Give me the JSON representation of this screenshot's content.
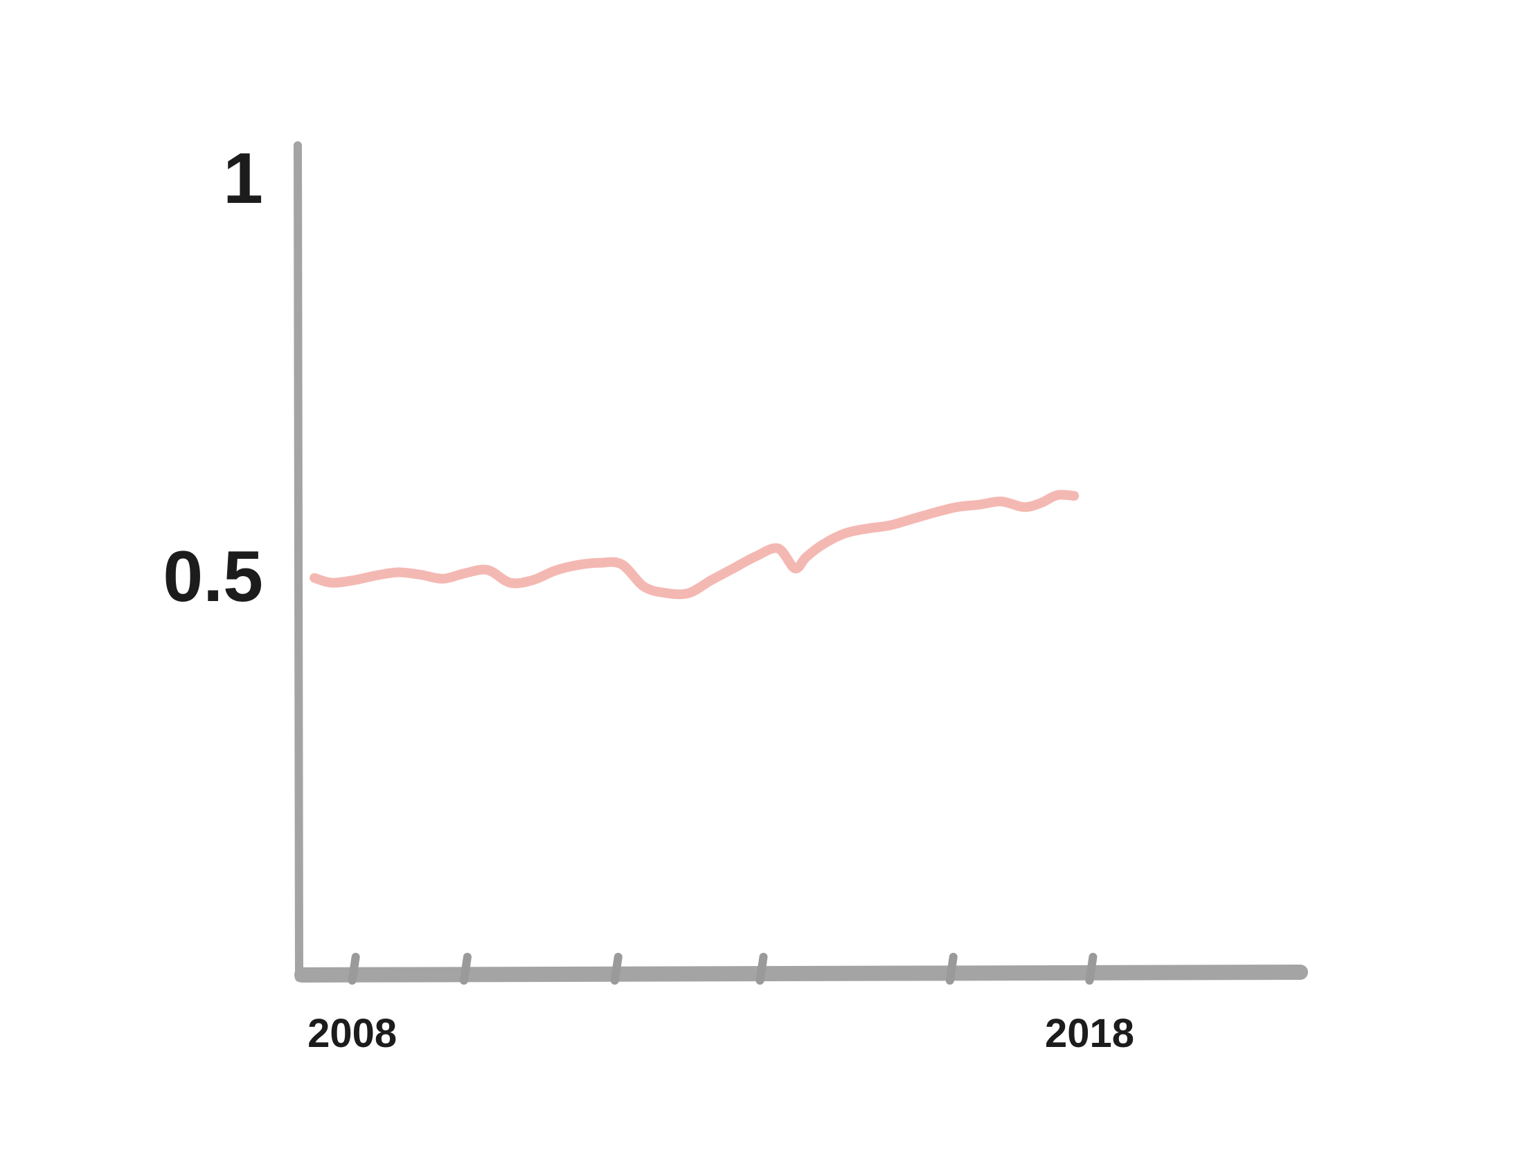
{
  "chart_data": {
    "type": "line",
    "title": "",
    "xlabel": "",
    "ylabel": "",
    "xlim": [
      2007,
      2025
    ],
    "ylim": [
      0,
      1
    ],
    "grid": false,
    "y_ticks": [
      {
        "value": 1,
        "label": "1"
      },
      {
        "value": 0.5,
        "label": "0.5"
      }
    ],
    "x_ticks": [
      {
        "value": 2008,
        "label": "2008"
      },
      {
        "value": 2010,
        "label": ""
      },
      {
        "value": 2012.7,
        "label": ""
      },
      {
        "value": 2015.3,
        "label": ""
      },
      {
        "value": 2018.7,
        "label": ""
      },
      {
        "value": 2021.2,
        "label": "2018"
      }
    ],
    "series": [
      {
        "color": "#f4b8b2",
        "x": [
          2007.3,
          2007.6,
          2008.0,
          2008.4,
          2008.8,
          2009.2,
          2009.6,
          2010.0,
          2010.4,
          2010.8,
          2011.2,
          2011.6,
          2012.0,
          2012.4,
          2012.8,
          2013.2,
          2013.6,
          2014.0,
          2014.4,
          2014.8,
          2015.2,
          2015.6,
          2015.9,
          2016.1,
          2016.4,
          2016.8,
          2017.2,
          2017.6,
          2018.0,
          2018.4,
          2018.8,
          2019.2,
          2019.6,
          2020.0,
          2020.3,
          2020.6,
          2020.9
        ],
        "y": [
          0.496,
          0.49,
          0.493,
          0.499,
          0.503,
          0.5,
          0.495,
          0.502,
          0.506,
          0.49,
          0.493,
          0.505,
          0.512,
          0.515,
          0.513,
          0.485,
          0.477,
          0.477,
          0.493,
          0.508,
          0.523,
          0.533,
          0.508,
          0.522,
          0.538,
          0.552,
          0.558,
          0.562,
          0.57,
          0.578,
          0.585,
          0.588,
          0.592,
          0.585,
          0.59,
          0.6,
          0.599
        ]
      }
    ]
  }
}
